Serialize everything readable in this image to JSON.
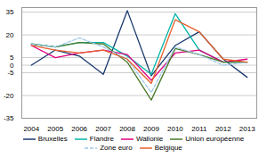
{
  "chart_data": {
    "type": "line",
    "x": [
      2004,
      2005,
      2006,
      2007,
      2008,
      2009,
      2010,
      2011,
      2012,
      2013
    ],
    "series": [
      {
        "name": "Bruxelles",
        "color": "#1a3a6e",
        "line_style": "solid",
        "values": [
          0,
          10,
          6,
          -6,
          36,
          -7,
          13,
          22,
          4,
          -8
        ]
      },
      {
        "name": "Flandre",
        "color": "#00b4a6",
        "line_style": "solid",
        "values": [
          14,
          12,
          15,
          15,
          6,
          -6,
          34,
          10,
          2,
          2
        ]
      },
      {
        "name": "Wallonie",
        "color": "#e0007f",
        "line_style": "solid",
        "values": [
          13,
          5,
          8,
          10,
          7,
          -10,
          8,
          10,
          2,
          4
        ]
      },
      {
        "name": "Union européenne",
        "color": "#4a7a2b",
        "line_style": "solid",
        "values": [
          14,
          12,
          15,
          14,
          2,
          -23,
          11,
          7,
          2,
          2
        ]
      },
      {
        "name": "Zone euro",
        "color": "#a0c8e8",
        "line_style": "dashed",
        "values": [
          14,
          12,
          18,
          12,
          4,
          -18,
          12,
          7,
          0,
          2
        ]
      },
      {
        "name": "Belgique",
        "color": "#e8602c",
        "line_style": "solid",
        "values": [
          13,
          10,
          8,
          10,
          4,
          -12,
          30,
          22,
          4,
          2
        ]
      }
    ],
    "xlim": [
      2003.6,
      2013.4
    ],
    "xticks": [
      2004,
      2005,
      2006,
      2007,
      2008,
      2009,
      2010,
      2011,
      2012,
      2013
    ],
    "ylim": [
      -35,
      38
    ],
    "yticks": [
      35,
      20,
      5,
      0,
      -5,
      -20,
      -35
    ],
    "grid": true,
    "legend": "bottom"
  }
}
